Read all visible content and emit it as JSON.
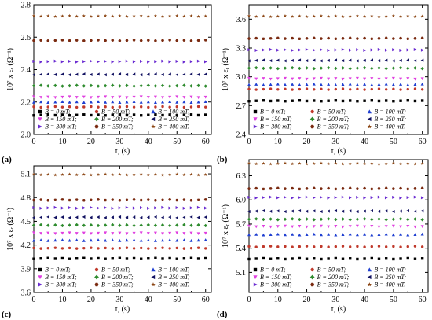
{
  "figure": {
    "shared_legend": [
      {
        "label": "B = 0 mT;",
        "color": "#000000",
        "marker": "square"
      },
      {
        "label": "B = 50 mT;",
        "color": "#c0392b",
        "marker": "circle"
      },
      {
        "label": "B = 100 mT;",
        "color": "#1f3fd1",
        "marker": "triangle-up"
      },
      {
        "label": "B = 150 mT;",
        "color": "#e040e0",
        "marker": "triangle-down"
      },
      {
        "label": "B = 200 mT;",
        "color": "#2e8b2e",
        "marker": "diamond"
      },
      {
        "label": "B = 250 mT;",
        "color": "#101060",
        "marker": "triangle-left"
      },
      {
        "label": "B = 300 mT;",
        "color": "#6a2bd1",
        "marker": "triangle-right"
      },
      {
        "label": "B = 350 mT;",
        "color": "#7a2a10",
        "marker": "hexagon"
      },
      {
        "label": "B = 400 mT.",
        "color": "#8b4513",
        "marker": "star"
      }
    ]
  },
  "chart_data": [
    {
      "panel": "(a)",
      "type": "scatter",
      "xlabel": "t, (s)",
      "ylabel": "10⁷ x εᵣ (Ω⁻¹)",
      "xlim": [
        0,
        62
      ],
      "ylim": [
        2.0,
        2.8
      ],
      "xticks": [
        0,
        10,
        20,
        30,
        40,
        50,
        60
      ],
      "yticks": [
        2.0,
        2.2,
        2.4,
        2.6,
        2.8
      ],
      "ytick_labels": [
        "2.0",
        "2.2",
        "2.4",
        "2.6",
        "2.8"
      ],
      "x": [
        0,
        2.5,
        5,
        7.5,
        10,
        12.5,
        15,
        17.5,
        20,
        22.5,
        25,
        27.5,
        30,
        32.5,
        35,
        37.5,
        40,
        42.5,
        45,
        47.5,
        50,
        52.5,
        55,
        57.5,
        60
      ],
      "series_levels": [
        2.12,
        2.17,
        2.2,
        2.23,
        2.3,
        2.37,
        2.45,
        2.58,
        2.73
      ]
    },
    {
      "panel": "(b)",
      "type": "scatter",
      "xlabel": "t, (s)",
      "ylabel": "10⁷ x εᵣ (Ω⁻¹)",
      "xlim": [
        0,
        62
      ],
      "ylim": [
        2.4,
        3.75
      ],
      "xticks": [
        0,
        10,
        20,
        30,
        40,
        50,
        60
      ],
      "yticks": [
        2.4,
        2.7,
        3.0,
        3.3,
        3.6
      ],
      "ytick_labels": [
        "2.4",
        "2.7",
        "3.0",
        "3.3",
        "3.6"
      ],
      "x": [
        0,
        2.5,
        5,
        7.5,
        10,
        12.5,
        15,
        17.5,
        20,
        22.5,
        25,
        27.5,
        30,
        32.5,
        35,
        37.5,
        40,
        42.5,
        45,
        47.5,
        50,
        52.5,
        55,
        57.5,
        60
      ],
      "series_levels": [
        2.75,
        2.87,
        2.92,
        2.98,
        3.09,
        3.17,
        3.28,
        3.4,
        3.63
      ]
    },
    {
      "panel": "(c)",
      "type": "scatter",
      "xlabel": "t, (s)",
      "ylabel": "10⁷ x εᵣ (Ω⁻¹)",
      "xlim": [
        0,
        62
      ],
      "ylim": [
        3.6,
        5.2
      ],
      "xticks": [
        0,
        10,
        20,
        30,
        40,
        50,
        60
      ],
      "yticks": [
        3.6,
        3.9,
        4.2,
        4.5,
        4.8,
        5.1
      ],
      "ytick_labels": [
        "3.6",
        "3.9",
        "4.2",
        "4.5",
        "4.8",
        "5.1"
      ],
      "x": [
        0,
        2.5,
        5,
        7.5,
        10,
        12.5,
        15,
        17.5,
        20,
        22.5,
        25,
        27.5,
        30,
        32.5,
        35,
        37.5,
        40,
        42.5,
        45,
        47.5,
        50,
        52.5,
        55,
        57.5,
        60
      ],
      "series_levels": [
        4.03,
        4.16,
        4.26,
        4.35,
        4.45,
        4.55,
        4.67,
        4.77,
        5.09
      ]
    },
    {
      "panel": "(d)",
      "type": "scatter",
      "xlabel": "t, (s)",
      "ylabel": "10⁷ x εᵣ (Ω⁻¹)",
      "xlim": [
        0,
        62
      ],
      "ylim": [
        4.85,
        6.5
      ],
      "xticks": [
        0,
        10,
        20,
        30,
        40,
        50,
        60
      ],
      "yticks": [
        5.1,
        5.4,
        5.7,
        6.0,
        6.3
      ],
      "ytick_labels": [
        "5.1",
        "5.4",
        "5.7",
        "6.0",
        "6.3"
      ],
      "x": [
        0,
        2.5,
        5,
        7.5,
        10,
        12.5,
        15,
        17.5,
        20,
        22.5,
        25,
        27.5,
        30,
        32.5,
        35,
        37.5,
        40,
        42.5,
        45,
        47.5,
        50,
        52.5,
        55,
        57.5,
        60
      ],
      "series_levels": [
        5.27,
        5.42,
        5.57,
        5.67,
        5.76,
        5.86,
        6.03,
        6.14,
        6.45
      ]
    }
  ]
}
